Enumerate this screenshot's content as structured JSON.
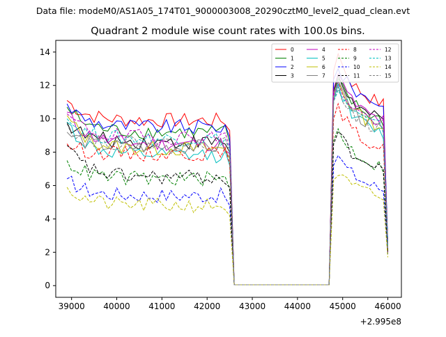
{
  "chart_data": {
    "type": "line",
    "suptitle": "Data file: modeM0/AS1A05_174T01_9000003008_20290cztM0_level2_quad_clean.evt",
    "title": "Quadrant 2 module wise count rates with 100.0s bins.",
    "xlabel": "",
    "ylabel": "",
    "x_offset_label": "+2.995e8",
    "xlim": [
      38650,
      46300
    ],
    "ylim": [
      -0.7,
      14.7
    ],
    "x_ticks": [
      39000,
      40000,
      41000,
      42000,
      43000,
      44000,
      45000,
      46000
    ],
    "x_tick_labels": [
      "39000",
      "40000",
      "41000",
      "42000",
      "43000",
      "44000",
      "45000",
      "46000"
    ],
    "y_ticks": [
      0,
      2,
      4,
      6,
      8,
      10,
      12,
      14
    ],
    "y_tick_labels": [
      "0",
      "2",
      "4",
      "6",
      "8",
      "10",
      "12",
      "14"
    ],
    "grid": false,
    "legend_position": "top-right",
    "gap": {
      "start": 42500,
      "end": 44700
    },
    "segment1": {
      "start": 38900,
      "end": 42500,
      "step": 100
    },
    "segment2": {
      "start": 44800,
      "end": 46000,
      "step": 100
    },
    "series": [
      {
        "name": "0",
        "color": "#ff0000",
        "dashed": false,
        "level1": 9.9,
        "level2": 11.6,
        "start1": 11.1,
        "peak2": 13.9,
        "end": 2.2
      },
      {
        "name": "1",
        "color": "#008000",
        "dashed": false,
        "level1": 9.2,
        "level2": 10.6,
        "start1": 10.7,
        "peak2": 12.4,
        "end": 2.5
      },
      {
        "name": "2",
        "color": "#0000ff",
        "dashed": false,
        "level1": 9.5,
        "level2": 11.6,
        "start1": 10.9,
        "peak2": 13.0,
        "end": 2.6
      },
      {
        "name": "3",
        "color": "#000000",
        "dashed": false,
        "level1": 8.6,
        "level2": 10.6,
        "start1": 9.8,
        "peak2": 12.6,
        "end": 2.4
      },
      {
        "name": "4",
        "color": "#bf00bf",
        "dashed": false,
        "level1": 8.5,
        "level2": 10.6,
        "start1": 10.4,
        "peak2": 12.7,
        "end": 2.3
      },
      {
        "name": "5",
        "color": "#00bfbf",
        "dashed": false,
        "level1": 7.8,
        "level2": 9.8,
        "start1": 9.8,
        "peak2": 12.1,
        "end": 2.2
      },
      {
        "name": "6",
        "color": "#bfbf00",
        "dashed": false,
        "level1": 8.2,
        "level2": 10.2,
        "start1": 10.2,
        "peak2": 12.3,
        "end": 2.3
      },
      {
        "name": "7",
        "color": "#808080",
        "dashed": false,
        "level1": 8.3,
        "level2": 10.0,
        "start1": 9.2,
        "peak2": 12.3,
        "end": 2.2
      },
      {
        "name": "8",
        "color": "#ff0000",
        "dashed": true,
        "level1": 7.9,
        "level2": 8.9,
        "start1": 8.5,
        "peak2": 10.9,
        "end": 2.0
      },
      {
        "name": "9",
        "color": "#008000",
        "dashed": true,
        "level1": 6.4,
        "level2": 7.8,
        "start1": 7.5,
        "peak2": 9.4,
        "end": 1.9
      },
      {
        "name": "10",
        "color": "#0000ff",
        "dashed": true,
        "level1": 5.4,
        "level2": 6.5,
        "start1": 6.4,
        "peak2": 7.8,
        "end": 1.8
      },
      {
        "name": "11",
        "color": "#000000",
        "dashed": true,
        "level1": 6.5,
        "level2": 7.6,
        "start1": 8.4,
        "peak2": 9.2,
        "end": 2.0
      },
      {
        "name": "12",
        "color": "#bf00bf",
        "dashed": true,
        "level1": 8.9,
        "level2": 10.4,
        "start1": 10.3,
        "peak2": 12.2,
        "end": 2.3
      },
      {
        "name": "13",
        "color": "#00bfbf",
        "dashed": true,
        "level1": 8.8,
        "level2": 10.2,
        "start1": 10.0,
        "peak2": 11.7,
        "end": 2.3
      },
      {
        "name": "14",
        "color": "#bfbf00",
        "dashed": true,
        "level1": 4.8,
        "level2": 6.0,
        "start1": 5.9,
        "peak2": 6.6,
        "end": 1.7
      },
      {
        "name": "15",
        "color": "#808080",
        "dashed": true,
        "level1": 8.5,
        "level2": 10.0,
        "start1": 9.7,
        "peak2": 11.9,
        "end": 2.2
      }
    ]
  }
}
